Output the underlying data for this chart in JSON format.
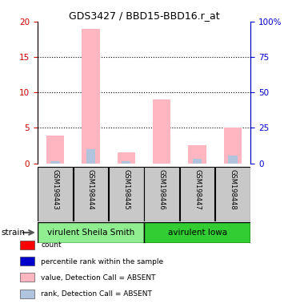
{
  "title": "GDS3427 / BBD15-BBD16.r_at",
  "samples": [
    "GSM198443",
    "GSM198444",
    "GSM198445",
    "GSM198446",
    "GSM198447",
    "GSM198448"
  ],
  "groups": [
    {
      "label": "virulent Sheila Smith",
      "color": "#90EE90",
      "samples": [
        0,
        1,
        2
      ]
    },
    {
      "label": "avirulent Iowa",
      "color": "#32CD32",
      "samples": [
        3,
        4,
        5
      ]
    }
  ],
  "value_absent": [
    3.9,
    19.0,
    1.5,
    9.0,
    2.6,
    5.0
  ],
  "rank_absent": [
    1.5,
    10.0,
    1.6,
    null,
    3.0,
    5.3
  ],
  "count_present": [
    null,
    null,
    null,
    null,
    null,
    null
  ],
  "rank_present": [
    null,
    null,
    null,
    null,
    null,
    null
  ],
  "ylim_left": [
    0,
    20
  ],
  "ylim_right": [
    0,
    100
  ],
  "yticks_left": [
    0,
    5,
    10,
    15,
    20
  ],
  "yticks_right": [
    0,
    25,
    50,
    75,
    100
  ],
  "bar_color_absent_value": "#FFB6C1",
  "bar_color_absent_rank": "#B0C4DE",
  "bar_color_present_count": "#FF0000",
  "bar_color_present_rank": "#0000CC",
  "grid_color": "#000000",
  "bg_color": "#FFFFFF",
  "left_axis_color": "#CC0000",
  "right_axis_color": "#0000CC"
}
